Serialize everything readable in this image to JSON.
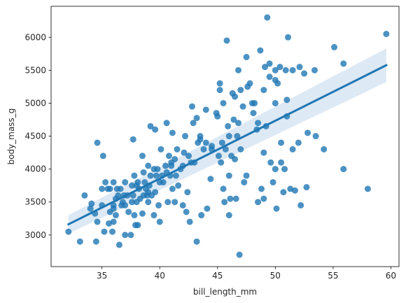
{
  "chart_data": {
    "type": "scatter",
    "xlabel": "bill_length_mm",
    "ylabel": "body_mass_g",
    "xlim": [
      30.6,
      60.7
    ],
    "ylim": [
      2520,
      6470
    ],
    "x_ticks": [
      35,
      40,
      45,
      50,
      55,
      60
    ],
    "y_ticks": [
      3000,
      3500,
      4000,
      4500,
      5000,
      5500,
      6000
    ],
    "grid": false,
    "colors": {
      "point": "#1f77b4",
      "line": "#1f77b4",
      "band": "#c6dbef"
    },
    "regression": {
      "x": [
        32.1,
        59.6
      ],
      "y": [
        3162,
        5576
      ],
      "ci_upper": [
        3300,
        5830
      ],
      "ci_lower": [
        3020,
        5320
      ]
    },
    "points": [
      [
        32.1,
        3050
      ],
      [
        33.1,
        2900
      ],
      [
        33.5,
        3600
      ],
      [
        34.0,
        3400
      ],
      [
        34.1,
        3475
      ],
      [
        34.4,
        3325
      ],
      [
        34.5,
        2900
      ],
      [
        34.6,
        4400
      ],
      [
        34.6,
        3200
      ],
      [
        35.0,
        3450
      ],
      [
        35.1,
        4200
      ],
      [
        35.2,
        3050
      ],
      [
        35.3,
        3800
      ],
      [
        35.5,
        3700
      ],
      [
        35.6,
        3175
      ],
      [
        35.7,
        3350
      ],
      [
        35.7,
        3700
      ],
      [
        35.9,
        3050
      ],
      [
        36.0,
        3450
      ],
      [
        36.0,
        3800
      ],
      [
        36.0,
        3200
      ],
      [
        36.2,
        3550
      ],
      [
        36.2,
        3300
      ],
      [
        36.3,
        3700
      ],
      [
        36.4,
        3600
      ],
      [
        36.5,
        2850
      ],
      [
        36.6,
        3700
      ],
      [
        36.7,
        3450
      ],
      [
        36.8,
        3500
      ],
      [
        36.9,
        3600
      ],
      [
        37.0,
        3000
      ],
      [
        37.0,
        3800
      ],
      [
        37.2,
        3600
      ],
      [
        37.3,
        3350
      ],
      [
        37.5,
        3000
      ],
      [
        37.6,
        3500
      ],
      [
        37.6,
        3750
      ],
      [
        37.7,
        4450
      ],
      [
        37.7,
        3600
      ],
      [
        37.8,
        3900
      ],
      [
        37.8,
        3300
      ],
      [
        37.9,
        3150
      ],
      [
        38.0,
        3500
      ],
      [
        38.1,
        3800
      ],
      [
        38.1,
        3150
      ],
      [
        38.2,
        3700
      ],
      [
        38.3,
        3550
      ],
      [
        38.5,
        4200
      ],
      [
        38.5,
        3325
      ],
      [
        38.6,
        3600
      ],
      [
        38.6,
        3950
      ],
      [
        38.7,
        3800
      ],
      [
        38.8,
        3700
      ],
      [
        38.9,
        3600
      ],
      [
        39.0,
        4050
      ],
      [
        39.0,
        3650
      ],
      [
        39.1,
        3750
      ],
      [
        39.2,
        4650
      ],
      [
        39.2,
        3900
      ],
      [
        39.3,
        3600
      ],
      [
        39.5,
        3300
      ],
      [
        39.5,
        4000
      ],
      [
        39.6,
        4600
      ],
      [
        39.6,
        3650
      ],
      [
        39.7,
        3900
      ],
      [
        39.8,
        4000
      ],
      [
        39.9,
        3450
      ],
      [
        40.0,
        3200
      ],
      [
        40.1,
        4300
      ],
      [
        40.2,
        3900
      ],
      [
        40.3,
        3800
      ],
      [
        40.5,
        4050
      ],
      [
        40.6,
        3950
      ],
      [
        40.6,
        4700
      ],
      [
        40.7,
        3500
      ],
      [
        40.8,
        4200
      ],
      [
        40.9,
        3900
      ],
      [
        41.0,
        4050
      ],
      [
        41.1,
        4550
      ],
      [
        41.1,
        3700
      ],
      [
        41.3,
        3500
      ],
      [
        41.3,
        4150
      ],
      [
        41.4,
        3900
      ],
      [
        41.5,
        4300
      ],
      [
        41.6,
        3750
      ],
      [
        41.8,
        4000
      ],
      [
        42.0,
        4050
      ],
      [
        42.1,
        4250
      ],
      [
        42.2,
        4500
      ],
      [
        42.3,
        3350
      ],
      [
        42.4,
        3650
      ],
      [
        42.5,
        4200
      ],
      [
        42.6,
        3200
      ],
      [
        42.7,
        4100
      ],
      [
        42.8,
        4950
      ],
      [
        42.9,
        4700
      ],
      [
        43.2,
        2900
      ],
      [
        43.2,
        4775
      ],
      [
        43.3,
        4400
      ],
      [
        43.5,
        4450
      ],
      [
        43.6,
        3300
      ],
      [
        43.8,
        4300
      ],
      [
        44.0,
        4400
      ],
      [
        44.1,
        3400
      ],
      [
        44.4,
        3850
      ],
      [
        44.5,
        4300
      ],
      [
        44.9,
        4850
      ],
      [
        45.1,
        4200
      ],
      [
        45.2,
        5300
      ],
      [
        45.2,
        5200
      ],
      [
        45.3,
        4100
      ],
      [
        45.4,
        4400
      ],
      [
        45.5,
        3700
      ],
      [
        45.6,
        3500
      ],
      [
        45.7,
        4300
      ],
      [
        45.8,
        5950
      ],
      [
        45.9,
        4650
      ],
      [
        46.0,
        3900
      ],
      [
        46.1,
        3550
      ],
      [
        46.2,
        4200
      ],
      [
        46.3,
        5150
      ],
      [
        46.4,
        4750
      ],
      [
        46.5,
        5100
      ],
      [
        46.6,
        3550
      ],
      [
        46.7,
        4500
      ],
      [
        46.8,
        4700
      ],
      [
        46.9,
        2700
      ],
      [
        47.0,
        4300
      ],
      [
        47.2,
        4950
      ],
      [
        47.3,
        3800
      ],
      [
        47.5,
        3900
      ],
      [
        47.6,
        5250
      ],
      [
        47.8,
        5300
      ],
      [
        48.1,
        4850
      ],
      [
        48.2,
        5000
      ],
      [
        48.4,
        4600
      ],
      [
        48.5,
        4700
      ],
      [
        48.7,
        5800
      ],
      [
        48.8,
        3700
      ],
      [
        49.0,
        3550
      ],
      [
        49.1,
        5550
      ],
      [
        49.2,
        4650
      ],
      [
        49.3,
        6300
      ],
      [
        49.5,
        5600
      ],
      [
        49.6,
        4100
      ],
      [
        49.8,
        3800
      ],
      [
        50.0,
        5350
      ],
      [
        50.0,
        5000
      ],
      [
        50.1,
        3400
      ],
      [
        50.2,
        5300
      ],
      [
        50.4,
        5550
      ],
      [
        50.5,
        4400
      ],
      [
        50.7,
        3650
      ],
      [
        50.8,
        4000
      ],
      [
        50.9,
        5500
      ],
      [
        51.0,
        4800
      ],
      [
        51.1,
        6000
      ],
      [
        51.3,
        3700
      ],
      [
        51.5,
        5500
      ],
      [
        51.7,
        3675
      ],
      [
        52.0,
        4400
      ],
      [
        52.1,
        5550
      ],
      [
        52.2,
        3450
      ],
      [
        52.5,
        5450
      ],
      [
        52.7,
        3725
      ],
      [
        52.8,
        4550
      ],
      [
        53.4,
        5500
      ],
      [
        53.5,
        4500
      ],
      [
        54.2,
        4300
      ],
      [
        55.1,
        5850
      ],
      [
        55.9,
        4000
      ],
      [
        55.9,
        5600
      ],
      [
        58.0,
        3700
      ],
      [
        59.6,
        6050
      ],
      [
        35.0,
        3700
      ],
      [
        36.0,
        3400
      ],
      [
        37.0,
        3450
      ],
      [
        38.0,
        3750
      ],
      [
        39.0,
        3500
      ],
      [
        40.0,
        3800
      ],
      [
        41.0,
        4100
      ],
      [
        42.0,
        3450
      ],
      [
        43.0,
        4100
      ],
      [
        44.0,
        4900
      ],
      [
        45.0,
        4800
      ],
      [
        46.0,
        4500
      ],
      [
        47.0,
        5200
      ],
      [
        48.0,
        5000
      ],
      [
        49.0,
        5200
      ],
      [
        50.0,
        5500
      ],
      [
        51.0,
        5050
      ],
      [
        46.5,
        4150
      ],
      [
        48.5,
        3500
      ],
      [
        50.5,
        4100
      ],
      [
        45.5,
        5000
      ],
      [
        47.5,
        5700
      ],
      [
        49.5,
        5400
      ],
      [
        46.0,
        3300
      ],
      [
        49.0,
        4250
      ],
      [
        50.0,
        4000
      ],
      [
        51.5,
        4300
      ],
      [
        43.5,
        4500
      ],
      [
        44.5,
        4350
      ],
      [
        46.8,
        5500
      ]
    ]
  }
}
